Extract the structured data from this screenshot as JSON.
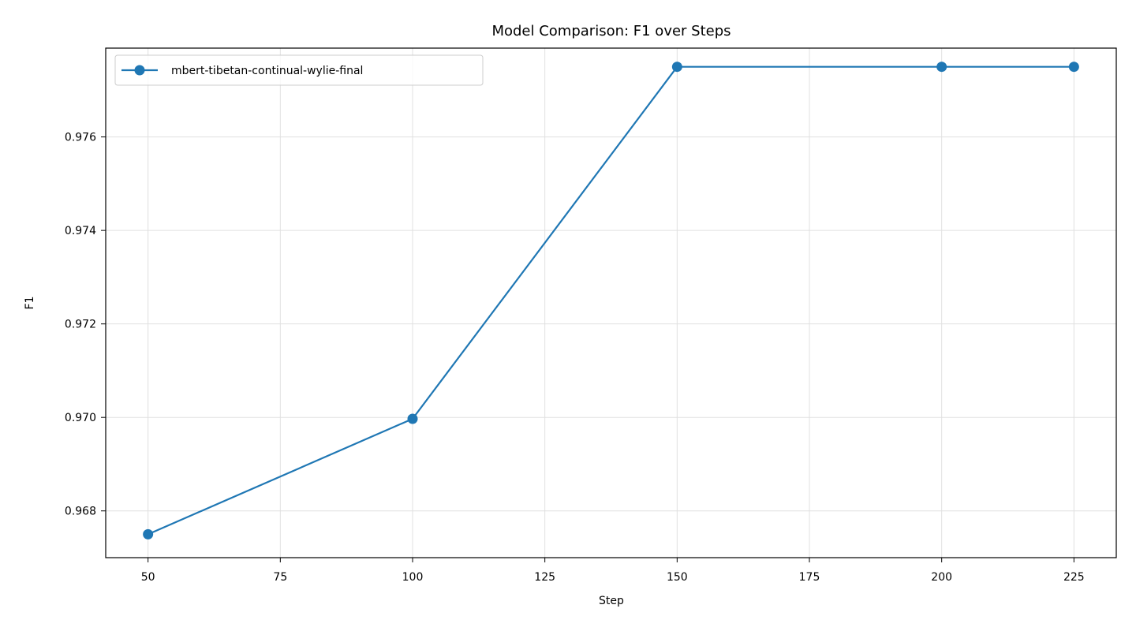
{
  "chart_data": {
    "type": "line",
    "title": "Model Comparison: F1 over Steps",
    "xlabel": "Step",
    "ylabel": "F1",
    "xlim": [
      42,
      233
    ],
    "ylim": [
      0.967,
      0.9779
    ],
    "xticks": [
      50,
      75,
      100,
      125,
      150,
      175,
      200,
      225
    ],
    "yticks": [
      0.968,
      0.97,
      0.972,
      0.974,
      0.976
    ],
    "ytick_labels": [
      "0.968",
      "0.970",
      "0.972",
      "0.974",
      "0.976"
    ],
    "grid": true,
    "legend_position": "top-left",
    "series": [
      {
        "name": "mbert-tibetan-continual-wylie-final",
        "color": "#1f77b4",
        "marker": "circle",
        "x": [
          50,
          100,
          150,
          200,
          225
        ],
        "y": [
          0.9675,
          0.96997,
          0.9775,
          0.9775,
          0.9775
        ]
      }
    ]
  }
}
